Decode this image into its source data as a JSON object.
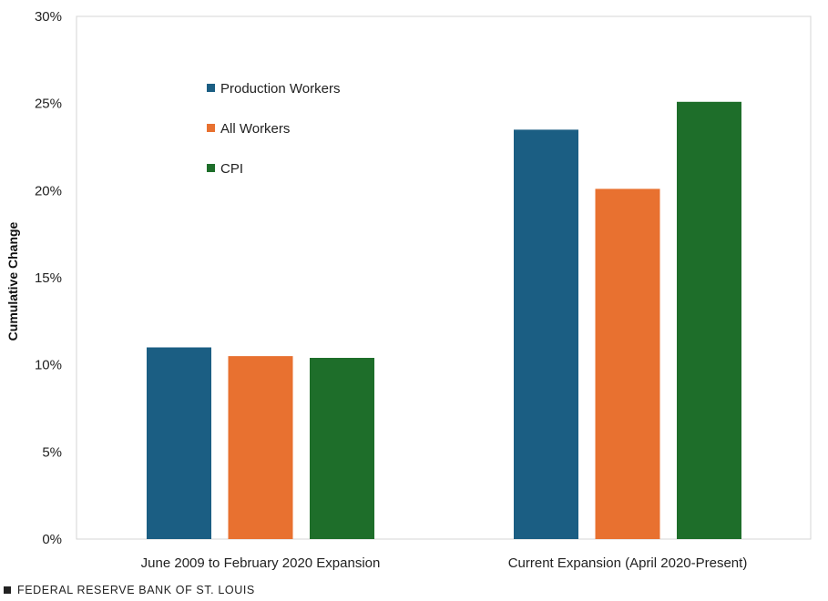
{
  "chart_data": {
    "type": "bar",
    "title": "",
    "xlabel": "",
    "ylabel": "Cumulative Change",
    "ylim": [
      0,
      30
    ],
    "yticks": [
      0,
      5,
      10,
      15,
      20,
      25,
      30
    ],
    "ytick_labels": [
      "0%",
      "5%",
      "10%",
      "15%",
      "20%",
      "25%",
      "30%"
    ],
    "grid": false,
    "legend_position": "top-left inside plot",
    "categories": [
      "June 2009 to February 2020 Expansion",
      "Current Expansion (April 2020-Present)"
    ],
    "series": [
      {
        "name": "Production Workers",
        "color": "#1b5e83",
        "values": [
          11.0,
          23.5
        ]
      },
      {
        "name": "All Workers",
        "color": "#e87130",
        "values": [
          10.5,
          20.1
        ]
      },
      {
        "name": "CPI",
        "color": "#1e6e2a",
        "values": [
          10.4,
          25.1
        ]
      }
    ]
  },
  "footer": {
    "source": "FEDERAL RESERVE BANK OF ST. LOUIS"
  }
}
